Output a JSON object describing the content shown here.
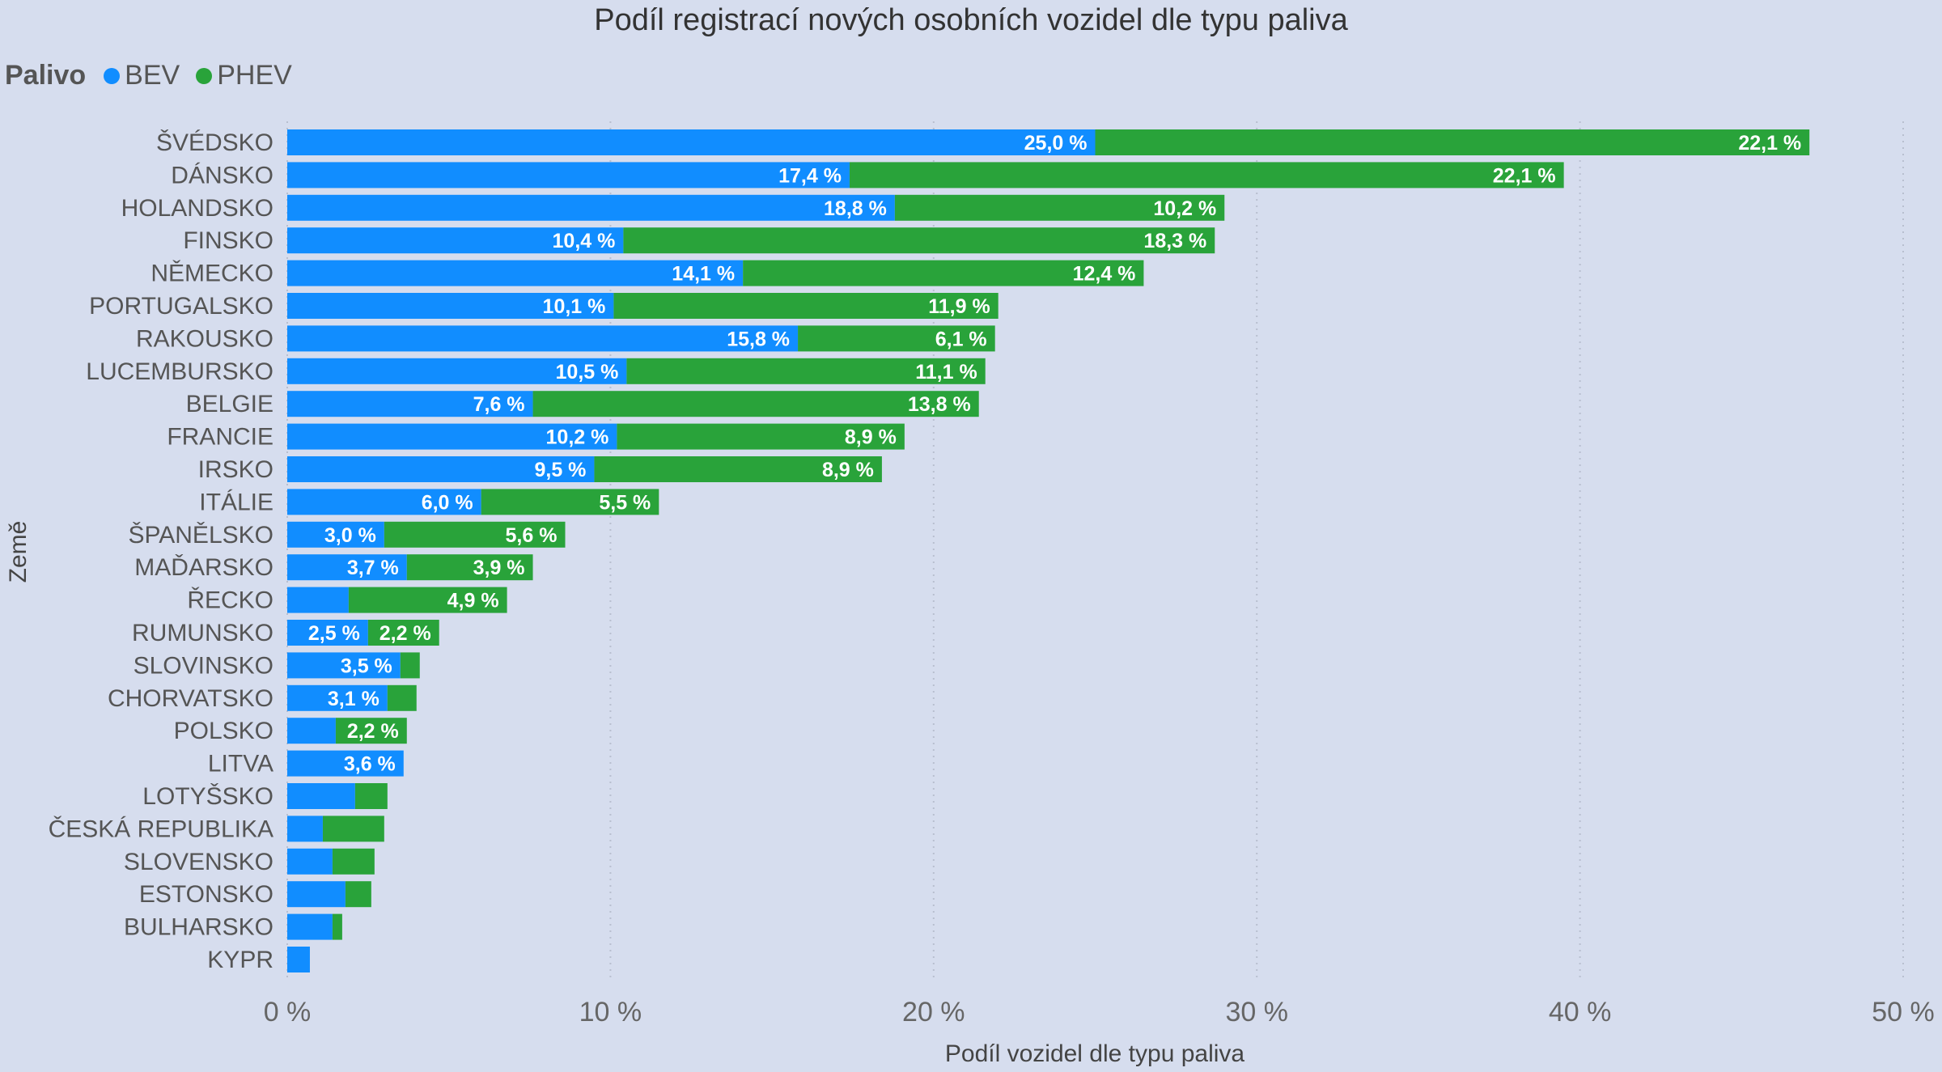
{
  "chart_data": {
    "type": "bar",
    "orientation": "horizontal",
    "stacked": true,
    "title": "Podíl registrací nových osobních vozidel dle typu paliva",
    "xlabel": "Podíl vozidel dle typu paliva",
    "ylabel": "Země",
    "legend_title": "Palivo",
    "legend_position": "top-left",
    "xlim": [
      0,
      50
    ],
    "xticks": [
      "0 %",
      "10 %",
      "20 %",
      "30 %",
      "40 %",
      "50 %"
    ],
    "grid": "vertical dotted",
    "categories": [
      "ŠVÉDSKO",
      "DÁNSKO",
      "HOLANDSKO",
      "FINSKO",
      "NĚMECKO",
      "PORTUGALSKO",
      "RAKOUSKO",
      "LUCEMBURSKO",
      "BELGIE",
      "FRANCIE",
      "IRSKO",
      "ITÁLIE",
      "ŠPANĚLSKO",
      "MAĎARSKO",
      "ŘECKO",
      "RUMUNSKO",
      "SLOVINSKO",
      "CHORVATSKO",
      "POLSKO",
      "LITVA",
      "LOTYŠSKO",
      "ČESKÁ REPUBLIKA",
      "SLOVENSKO",
      "ESTONSKO",
      "BULHARSKO",
      "KYPR"
    ],
    "series": [
      {
        "name": "BEV",
        "color": "#118dff",
        "values": [
          25.0,
          17.4,
          18.8,
          10.4,
          14.1,
          10.1,
          15.8,
          10.5,
          7.6,
          10.2,
          9.5,
          6.0,
          3.0,
          3.7,
          1.9,
          2.5,
          3.5,
          3.1,
          1.5,
          3.6,
          2.1,
          1.1,
          1.4,
          1.8,
          1.4,
          0.7
        ],
        "labels": [
          "25,0 %",
          "17,4 %",
          "18,8 %",
          "10,4 %",
          "14,1 %",
          "10,1 %",
          "15,8 %",
          "10,5 %",
          "7,6 %",
          "10,2 %",
          "9,5 %",
          "6,0 %",
          "3,0 %",
          "3,7 %",
          "",
          "2,5 %",
          "3,5 %",
          "3,1 %",
          "",
          "3,6 %",
          "",
          "",
          "",
          "",
          "",
          ""
        ]
      },
      {
        "name": "PHEV",
        "color": "#29a33a",
        "values": [
          22.1,
          22.1,
          10.2,
          18.3,
          12.4,
          11.9,
          6.1,
          11.1,
          13.8,
          8.9,
          8.9,
          5.5,
          5.6,
          3.9,
          4.9,
          2.2,
          0.6,
          0.9,
          2.2,
          0.0,
          1.0,
          1.9,
          1.3,
          0.8,
          0.3,
          0.0
        ],
        "labels": [
          "22,1 %",
          "22,1 %",
          "10,2 %",
          "18,3 %",
          "12,4 %",
          "11,9 %",
          "6,1 %",
          "11,1 %",
          "13,8 %",
          "8,9 %",
          "8,9 %",
          "5,5 %",
          "5,6 %",
          "3,9 %",
          "4,9 %",
          "2,2 %",
          "",
          "",
          "2,2 %",
          "",
          "",
          "",
          "",
          "",
          "",
          ""
        ]
      }
    ]
  }
}
